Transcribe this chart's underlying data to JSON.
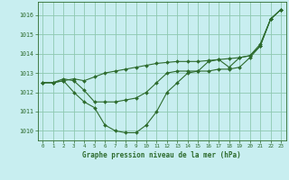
{
  "title": "Graphe pression niveau de la mer (hPa)",
  "bg_color": "#c8eef0",
  "grid_color": "#8ec8b0",
  "line_color": "#2d6b2d",
  "marker_color": "#2d6b2d",
  "xlim": [
    -0.5,
    23.5
  ],
  "ylim": [
    1009.5,
    1016.7
  ],
  "yticks": [
    1010,
    1011,
    1012,
    1013,
    1014,
    1015,
    1016
  ],
  "xticks": [
    0,
    1,
    2,
    3,
    4,
    5,
    6,
    7,
    8,
    9,
    10,
    11,
    12,
    13,
    14,
    15,
    16,
    17,
    18,
    19,
    20,
    21,
    22,
    23
  ],
  "series1_x": [
    0,
    1,
    2,
    3,
    4,
    5,
    6,
    7,
    8,
    9,
    10,
    11,
    12,
    13,
    14,
    15,
    16,
    17,
    18,
    19,
    20,
    21,
    22,
    23
  ],
  "series1_y": [
    1012.5,
    1012.5,
    1012.6,
    1012.7,
    1012.6,
    1012.8,
    1013.0,
    1013.1,
    1013.2,
    1013.3,
    1013.4,
    1013.5,
    1013.55,
    1013.6,
    1013.6,
    1013.6,
    1013.65,
    1013.7,
    1013.75,
    1013.8,
    1013.9,
    1014.5,
    1015.8,
    1016.3
  ],
  "series2_x": [
    0,
    1,
    2,
    3,
    4,
    5,
    6,
    7,
    8,
    9,
    10,
    11,
    12,
    13,
    14,
    15,
    16,
    17,
    18,
    19,
    20,
    21,
    22,
    23
  ],
  "series2_y": [
    1012.5,
    1012.5,
    1012.7,
    1012.6,
    1012.1,
    1011.5,
    1011.5,
    1011.5,
    1011.6,
    1011.7,
    1012.0,
    1012.5,
    1013.0,
    1013.1,
    1013.1,
    1013.1,
    1013.6,
    1013.7,
    1013.3,
    1013.8,
    1013.9,
    1014.4,
    1015.8,
    1016.3
  ],
  "series3_x": [
    0,
    1,
    2,
    3,
    4,
    5,
    6,
    7,
    8,
    9,
    10,
    11,
    12,
    13,
    14,
    15,
    16,
    17,
    18,
    19,
    20,
    21,
    22,
    23
  ],
  "series3_y": [
    1012.5,
    1012.5,
    1012.6,
    1012.0,
    1011.5,
    1011.2,
    1010.3,
    1010.0,
    1009.9,
    1009.9,
    1010.3,
    1011.0,
    1012.0,
    1012.5,
    1013.0,
    1013.1,
    1013.1,
    1013.2,
    1013.2,
    1013.3,
    1013.8,
    1014.4,
    1015.8,
    1016.3
  ]
}
